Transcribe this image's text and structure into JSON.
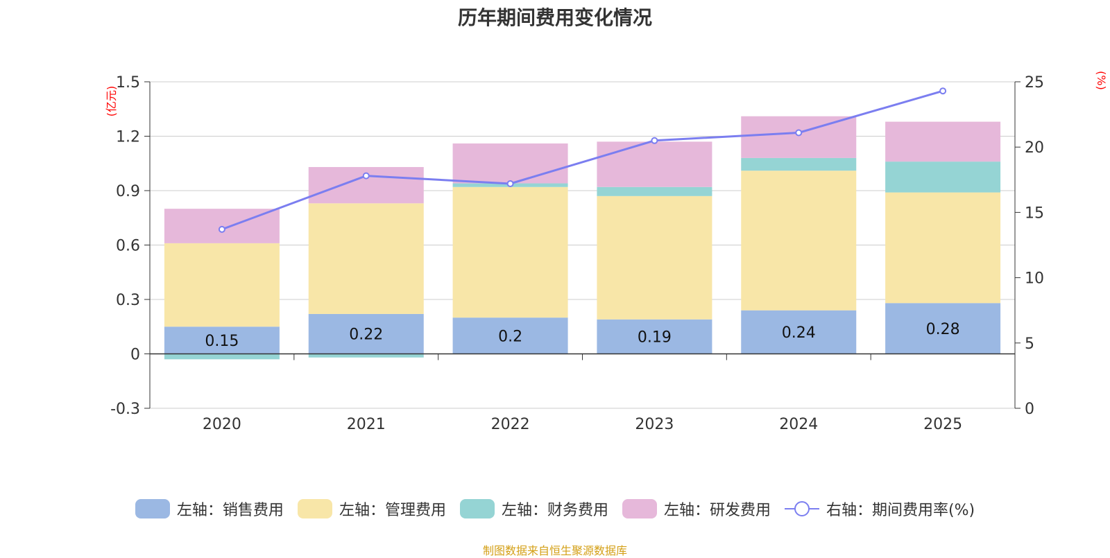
{
  "chart_data": {
    "type": "bar",
    "title": "历年期间费用变化情况",
    "categories": [
      "2020",
      "2021",
      "2022",
      "2023",
      "2024",
      "2025"
    ],
    "series": [
      {
        "name": "左轴：销售费用",
        "axis": "left",
        "type": "bar",
        "color": "#9bb8e3",
        "values": [
          0.15,
          0.22,
          0.2,
          0.19,
          0.24,
          0.28
        ],
        "labels": [
          "0.15",
          "0.22",
          "0.2",
          "0.19",
          "0.24",
          "0.28"
        ]
      },
      {
        "name": "左轴：管理费用",
        "axis": "left",
        "type": "bar",
        "color": "#f8e6a8",
        "values": [
          0.46,
          0.61,
          0.72,
          0.68,
          0.77,
          0.61
        ]
      },
      {
        "name": "左轴：财务费用",
        "axis": "left",
        "type": "bar",
        "color": "#95d4d4",
        "values": [
          -0.03,
          -0.02,
          0.02,
          0.05,
          0.07,
          0.17
        ]
      },
      {
        "name": "左轴：研发费用",
        "axis": "left",
        "type": "bar",
        "color": "#e6b8da",
        "values": [
          0.19,
          0.2,
          0.22,
          0.25,
          0.23,
          0.22
        ]
      },
      {
        "name": "右轴：期间费用率(%)",
        "axis": "right",
        "type": "line",
        "color": "#7b7ef0",
        "values": [
          13.7,
          17.8,
          17.2,
          20.5,
          21.1,
          24.3
        ]
      }
    ],
    "yleft": {
      "label": "(亿元)",
      "ylim": [
        -0.3,
        1.5
      ],
      "ticks": [
        -0.3,
        0,
        0.3,
        0.6,
        0.9,
        1.2,
        1.5
      ],
      "tick_labels": [
        "-0.3",
        "0",
        "0.3",
        "0.6",
        "0.9",
        "1.2",
        "1.5"
      ]
    },
    "yright": {
      "label": "(%)",
      "ylim": [
        0,
        25
      ],
      "ticks": [
        0,
        5,
        10,
        15,
        20,
        25
      ],
      "tick_labels": [
        "0",
        "5",
        "10",
        "15",
        "20",
        "25"
      ]
    },
    "grid": true,
    "legend_position": "bottom"
  },
  "colors": {
    "axis_label": "#ff0000",
    "grid": "#cccccc",
    "axis": "#333333",
    "source": "#d4a017"
  },
  "source_note": "制图数据来自恒生聚源数据库"
}
